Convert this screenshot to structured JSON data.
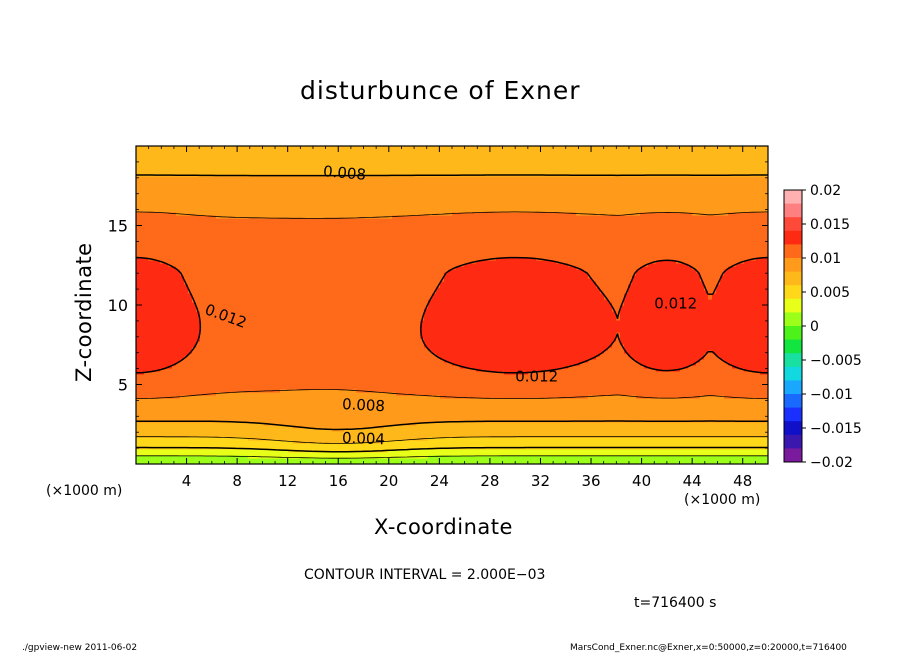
{
  "chart_data": {
    "type": "contour",
    "title": "disturbunce of Exner",
    "xlabel": "X-coordinate",
    "ylabel": "Z-coordinate",
    "x_unit_label": "(×1000 m)",
    "x_unit_label_right": "(×1000 m)",
    "xlim": [
      0,
      50
    ],
    "ylim": [
      0,
      20
    ],
    "x_ticks": [
      4,
      8,
      12,
      16,
      20,
      24,
      28,
      32,
      36,
      40,
      44,
      48
    ],
    "y_ticks": [
      5,
      10,
      15
    ],
    "colorbar": {
      "levels": [
        0.02,
        0.015,
        0.01,
        0.005,
        0,
        -0.005,
        -0.01,
        -0.015,
        -0.02
      ],
      "tick_labels": [
        "0.02",
        "0.015",
        "0.01",
        "0.005",
        "0",
        "−0.005",
        "−0.01",
        "−0.015",
        "−0.02"
      ],
      "colors": [
        "#ffb0b0",
        "#ff8080",
        "#ff4a3a",
        "#ff2a12",
        "#ff6a1a",
        "#ff9a1a",
        "#ffb81a",
        "#ffd81a",
        "#e8ff1a",
        "#9cff1a",
        "#4cf21a",
        "#12e440",
        "#18e0a0",
        "#12d8e0",
        "#1aa8ff",
        "#1a6aff",
        "#1a30ff",
        "#1010c8",
        "#3a18b0",
        "#7a1a9c"
      ]
    },
    "contour_labels": [
      {
        "text": "0.008",
        "x": 16.5,
        "z": 18.3,
        "angle": 5
      },
      {
        "text": "0.012",
        "x": 7.1,
        "z": 9.3,
        "angle": 20
      },
      {
        "text": "0.012",
        "x": 42.7,
        "z": 10.1,
        "angle": 0
      },
      {
        "text": "0.012",
        "x": 31.7,
        "z": 5.5,
        "angle": 0
      },
      {
        "text": "0.008",
        "x": 18,
        "z": 3.7,
        "angle": 3
      },
      {
        "text": "0.004",
        "x": 18,
        "z": 1.6,
        "angle": 2
      }
    ],
    "contour_interval_text": "CONTOUR INTERVAL = 2.000E−03",
    "time_text": "t=716400 s"
  },
  "footer": {
    "left": "./gpview-new   2011-06-02",
    "right": "MarsCond_Exner.nc@Exner,x=0:50000,z=0:20000,t=716400"
  }
}
